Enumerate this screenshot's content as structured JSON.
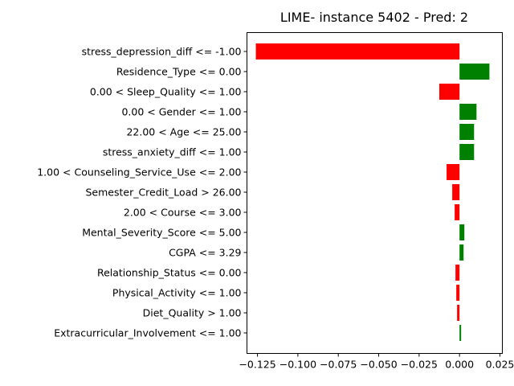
{
  "chart_data": {
    "type": "bar",
    "orientation": "horizontal",
    "title": "LIME- instance 5402 - Pred: 2",
    "xlabel": "",
    "ylabel": "",
    "xlim": [
      -0.1315,
      0.0265
    ],
    "xticks": [
      -0.125,
      -0.1,
      -0.075,
      -0.05,
      -0.025,
      0.0,
      0.025
    ],
    "xtick_labels": [
      "−0.125",
      "−0.100",
      "−0.075",
      "−0.050",
      "−0.025",
      "0.000",
      "0.025"
    ],
    "grid": false,
    "colors": {
      "positive": "#008000",
      "negative": "#ff0000"
    },
    "categories": [
      "stress_depression_diff <= -1.00",
      "Residence_Type <= 0.00",
      "0.00 < Sleep_Quality <= 1.00",
      "0.00 < Gender <= 1.00",
      "22.00 < Age <= 25.00",
      "stress_anxiety_diff <= 1.00",
      "1.00 < Counseling_Service_Use <= 2.00",
      "Semester_Credit_Load > 26.00",
      "2.00 < Course <= 3.00",
      "Mental_Severity_Score <= 5.00",
      "CGPA <= 3.29",
      "Relationship_Status <= 0.00",
      "Physical_Activity <= 1.00",
      "Diet_Quality > 1.00",
      "Extracurricular_Involvement <= 1.00"
    ],
    "values": [
      -0.126,
      0.0185,
      -0.0125,
      0.0105,
      0.009,
      0.009,
      -0.008,
      -0.0045,
      -0.003,
      0.003,
      0.0025,
      -0.0025,
      -0.002,
      -0.0015,
      0.001
    ]
  }
}
